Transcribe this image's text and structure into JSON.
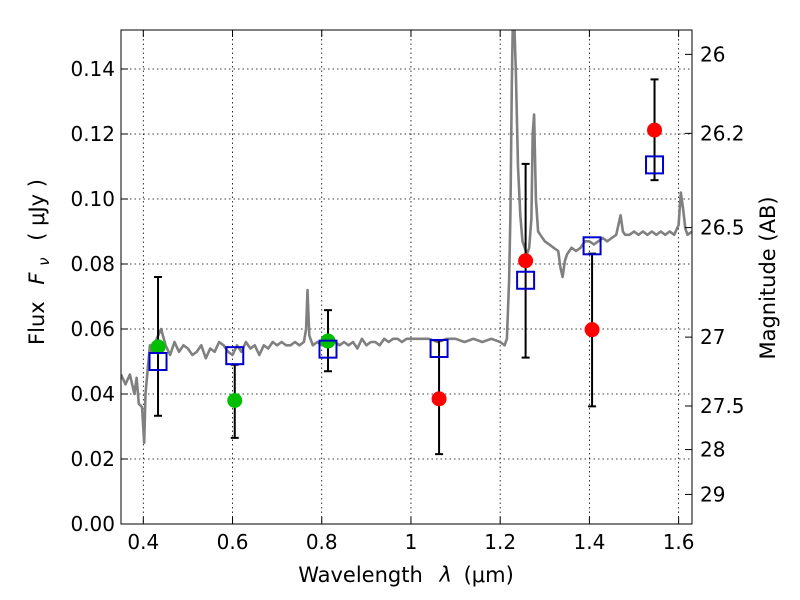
{
  "chart_data": {
    "type": "scatter",
    "xlabel_text": "Wavelength",
    "xlabel_symbol": "λ",
    "xlabel_unit": "(μm)",
    "ylabel_text": "Flux",
    "ylabel_symbol": "F",
    "ylabel_sub": "ν",
    "ylabel_unit": "( μJy )",
    "y2label": "Magnitude (AB)",
    "xlim": [
      0.35,
      1.63
    ],
    "ylim": [
      0.0,
      0.152
    ],
    "grid": true,
    "xticks": [
      0.4,
      0.6,
      0.8,
      1.0,
      1.2,
      1.4,
      1.6
    ],
    "xtick_labels": [
      "0.4",
      "0.6",
      "0.8",
      "1",
      "1.2",
      "1.4",
      "1.6"
    ],
    "yticks": [
      0.0,
      0.02,
      0.04,
      0.06,
      0.08,
      0.1,
      0.12,
      0.14
    ],
    "ytick_labels": [
      "0.00",
      "0.02",
      "0.04",
      "0.06",
      "0.08",
      "0.10",
      "0.12",
      "0.14"
    ],
    "mag_ticks": [
      {
        "label": "26",
        "flux": 0.1445
      },
      {
        "label": "26.2",
        "flux": 0.1202
      },
      {
        "label": "26.5",
        "flux": 0.0912
      },
      {
        "label": "27",
        "flux": 0.0575
      },
      {
        "label": "27.5",
        "flux": 0.0363
      },
      {
        "label": "28",
        "flux": 0.0229
      },
      {
        "label": "29",
        "flux": 0.0091
      }
    ],
    "series": [
      {
        "kind": "line",
        "color": "#808080",
        "points": [
          [
            0.35,
            0.046
          ],
          [
            0.36,
            0.043
          ],
          [
            0.37,
            0.046
          ],
          [
            0.38,
            0.04
          ],
          [
            0.385,
            0.045
          ],
          [
            0.39,
            0.037
          ],
          [
            0.397,
            0.036
          ],
          [
            0.402,
            0.025
          ],
          [
            0.405,
            0.04
          ],
          [
            0.41,
            0.048
          ],
          [
            0.415,
            0.055
          ],
          [
            0.42,
            0.053
          ],
          [
            0.43,
            0.057
          ],
          [
            0.44,
            0.06
          ],
          [
            0.45,
            0.055
          ],
          [
            0.46,
            0.052
          ],
          [
            0.47,
            0.056
          ],
          [
            0.48,
            0.053
          ],
          [
            0.49,
            0.055
          ],
          [
            0.5,
            0.054
          ],
          [
            0.51,
            0.052
          ],
          [
            0.52,
            0.053
          ],
          [
            0.53,
            0.055
          ],
          [
            0.54,
            0.051
          ],
          [
            0.55,
            0.054
          ],
          [
            0.56,
            0.053
          ],
          [
            0.57,
            0.056
          ],
          [
            0.58,
            0.055
          ],
          [
            0.59,
            0.053
          ],
          [
            0.6,
            0.052
          ],
          [
            0.61,
            0.055
          ],
          [
            0.62,
            0.053
          ],
          [
            0.63,
            0.056
          ],
          [
            0.64,
            0.054
          ],
          [
            0.65,
            0.055
          ],
          [
            0.66,
            0.052
          ],
          [
            0.67,
            0.055
          ],
          [
            0.68,
            0.054
          ],
          [
            0.69,
            0.056
          ],
          [
            0.7,
            0.055
          ],
          [
            0.71,
            0.056
          ],
          [
            0.72,
            0.055
          ],
          [
            0.73,
            0.055
          ],
          [
            0.74,
            0.056
          ],
          [
            0.75,
            0.055
          ],
          [
            0.76,
            0.056
          ],
          [
            0.765,
            0.06
          ],
          [
            0.768,
            0.072
          ],
          [
            0.772,
            0.058
          ],
          [
            0.78,
            0.055
          ],
          [
            0.79,
            0.056
          ],
          [
            0.8,
            0.055
          ],
          [
            0.81,
            0.056
          ],
          [
            0.82,
            0.055
          ],
          [
            0.83,
            0.056
          ],
          [
            0.84,
            0.055
          ],
          [
            0.85,
            0.056
          ],
          [
            0.86,
            0.055
          ],
          [
            0.87,
            0.056
          ],
          [
            0.88,
            0.054
          ],
          [
            0.89,
            0.057
          ],
          [
            0.9,
            0.055
          ],
          [
            0.91,
            0.056
          ],
          [
            0.92,
            0.056
          ],
          [
            0.93,
            0.055
          ],
          [
            0.94,
            0.057
          ],
          [
            0.95,
            0.056
          ],
          [
            0.96,
            0.057
          ],
          [
            0.97,
            0.057
          ],
          [
            0.98,
            0.056
          ],
          [
            0.99,
            0.057
          ],
          [
            1.0,
            0.057
          ],
          [
            1.02,
            0.057
          ],
          [
            1.04,
            0.057
          ],
          [
            1.06,
            0.056
          ],
          [
            1.08,
            0.057
          ],
          [
            1.1,
            0.057
          ],
          [
            1.12,
            0.056
          ],
          [
            1.14,
            0.057
          ],
          [
            1.16,
            0.056
          ],
          [
            1.18,
            0.057
          ],
          [
            1.2,
            0.056
          ],
          [
            1.21,
            0.055
          ],
          [
            1.215,
            0.057
          ],
          [
            1.22,
            0.075
          ],
          [
            1.223,
            0.095
          ],
          [
            1.226,
            0.135
          ],
          [
            1.228,
            0.152
          ],
          [
            1.232,
            0.152
          ],
          [
            1.235,
            0.14
          ],
          [
            1.24,
            0.11
          ],
          [
            1.245,
            0.095
          ],
          [
            1.25,
            0.087
          ],
          [
            1.26,
            0.083
          ],
          [
            1.265,
            0.085
          ],
          [
            1.27,
            0.094
          ],
          [
            1.273,
            0.12
          ],
          [
            1.276,
            0.126
          ],
          [
            1.28,
            0.1
          ],
          [
            1.285,
            0.09
          ],
          [
            1.29,
            0.089
          ],
          [
            1.3,
            0.087
          ],
          [
            1.31,
            0.086
          ],
          [
            1.32,
            0.085
          ],
          [
            1.33,
            0.084
          ],
          [
            1.335,
            0.079
          ],
          [
            1.34,
            0.076
          ],
          [
            1.345,
            0.081
          ],
          [
            1.35,
            0.083
          ],
          [
            1.36,
            0.085
          ],
          [
            1.37,
            0.084
          ],
          [
            1.38,
            0.085
          ],
          [
            1.39,
            0.087
          ],
          [
            1.4,
            0.087
          ],
          [
            1.41,
            0.086
          ],
          [
            1.42,
            0.087
          ],
          [
            1.43,
            0.088
          ],
          [
            1.44,
            0.087
          ],
          [
            1.45,
            0.088
          ],
          [
            1.46,
            0.089
          ],
          [
            1.465,
            0.092
          ],
          [
            1.47,
            0.095
          ],
          [
            1.475,
            0.09
          ],
          [
            1.48,
            0.089
          ],
          [
            1.49,
            0.089
          ],
          [
            1.5,
            0.09
          ],
          [
            1.51,
            0.089
          ],
          [
            1.52,
            0.09
          ],
          [
            1.53,
            0.089
          ],
          [
            1.54,
            0.09
          ],
          [
            1.55,
            0.089
          ],
          [
            1.56,
            0.09
          ],
          [
            1.57,
            0.089
          ],
          [
            1.58,
            0.09
          ],
          [
            1.59,
            0.089
          ],
          [
            1.6,
            0.092
          ],
          [
            1.605,
            0.102
          ],
          [
            1.61,
            0.097
          ],
          [
            1.615,
            0.091
          ],
          [
            1.62,
            0.089
          ],
          [
            1.63,
            0.09
          ]
        ]
      },
      {
        "kind": "errorbar",
        "color": "#000000",
        "points": [
          {
            "x": 0.433,
            "y": 0.0545,
            "lo": 0.0333,
            "hi": 0.076
          },
          {
            "x": 0.605,
            "y": 0.038,
            "lo": 0.0265,
            "hi": 0.049
          },
          {
            "x": 0.814,
            "y": 0.0563,
            "lo": 0.047,
            "hi": 0.0658
          },
          {
            "x": 1.063,
            "y": 0.0385,
            "lo": 0.0215,
            "hi": 0.0565
          },
          {
            "x": 1.257,
            "y": 0.081,
            "lo": 0.0512,
            "hi": 0.1108
          },
          {
            "x": 1.406,
            "y": 0.0598,
            "lo": 0.0362,
            "hi": 0.0832
          },
          {
            "x": 1.546,
            "y": 0.1212,
            "lo": 0.1058,
            "hi": 0.1368
          }
        ]
      },
      {
        "kind": "marker",
        "shape": "circle",
        "color": "#00bf00",
        "points": [
          [
            0.433,
            0.0545
          ],
          [
            0.605,
            0.038
          ],
          [
            0.814,
            0.0563
          ]
        ]
      },
      {
        "kind": "marker",
        "shape": "circle",
        "color": "#ff0000",
        "points": [
          [
            1.063,
            0.0385
          ],
          [
            1.257,
            0.081
          ],
          [
            1.406,
            0.0598
          ],
          [
            1.546,
            0.1212
          ]
        ]
      },
      {
        "kind": "marker",
        "shape": "square-open",
        "color": "#0000cc",
        "points": [
          [
            0.433,
            0.05
          ],
          [
            0.605,
            0.0518
          ],
          [
            0.814,
            0.0538
          ],
          [
            1.063,
            0.054
          ],
          [
            1.257,
            0.075
          ],
          [
            1.406,
            0.0856
          ],
          [
            1.546,
            0.1105
          ]
        ]
      }
    ]
  }
}
